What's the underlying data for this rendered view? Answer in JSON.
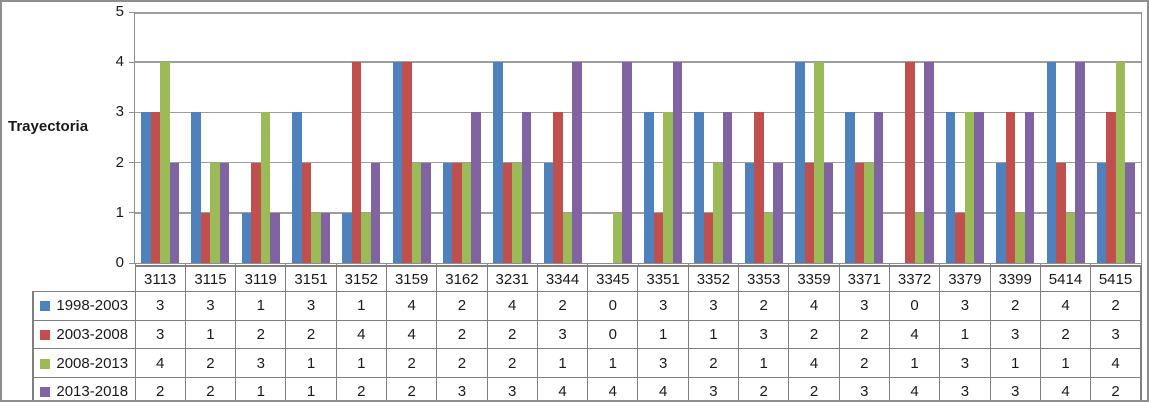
{
  "frame": {
    "background": "#ffffff",
    "border_color": "#8e8e8e",
    "gridline_color": "#9d9d9d",
    "table_border_color": "#7f7f7f"
  },
  "chart_data": {
    "type": "bar",
    "title": "",
    "ylabel": "Trayectoria",
    "xlabel": "",
    "ylim": [
      0,
      5
    ],
    "yticks": [
      0,
      1,
      2,
      3,
      4,
      5
    ],
    "grid": "horizontal",
    "legend_position": "table-left",
    "categories": [
      "3113",
      "3115",
      "3119",
      "3151",
      "3152",
      "3159",
      "3162",
      "3231",
      "3344",
      "3345",
      "3351",
      "3352",
      "3353",
      "3359",
      "3371",
      "3372",
      "3379",
      "3399",
      "5414",
      "5415"
    ],
    "series": [
      {
        "name": "1998-2003",
        "color": "#4F81BD",
        "values": [
          3,
          3,
          1,
          3,
          1,
          4,
          2,
          4,
          2,
          0,
          3,
          3,
          2,
          4,
          3,
          0,
          3,
          2,
          4,
          2
        ]
      },
      {
        "name": "2003-2008",
        "color": "#C0504D",
        "values": [
          3,
          1,
          2,
          2,
          4,
          4,
          2,
          2,
          3,
          0,
          1,
          1,
          3,
          2,
          2,
          4,
          1,
          3,
          2,
          3
        ]
      },
      {
        "name": "2008-2013",
        "color": "#9BBB59",
        "values": [
          4,
          2,
          3,
          1,
          1,
          2,
          2,
          2,
          1,
          1,
          3,
          2,
          1,
          4,
          2,
          1,
          3,
          1,
          1,
          4
        ]
      },
      {
        "name": "2013-2018",
        "color": "#8064A2",
        "values": [
          2,
          2,
          1,
          1,
          2,
          2,
          3,
          3,
          4,
          4,
          4,
          3,
          2,
          2,
          3,
          4,
          3,
          3,
          4,
          2
        ]
      }
    ]
  }
}
